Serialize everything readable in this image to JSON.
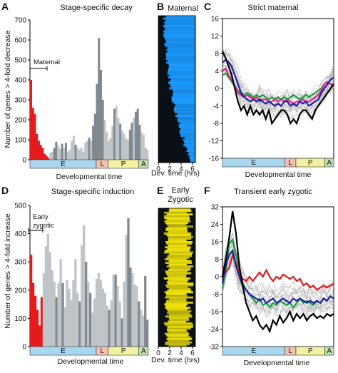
{
  "panels": {
    "A": {
      "letter": "A",
      "title": "Stage-specific decay",
      "annotation": "Maternal",
      "xlabel": "Developmental time",
      "ylabel": "Number of genes > 4-fold decrease"
    },
    "B": {
      "letter": "B",
      "title": "Maternal",
      "xlabel": "Dev. time (hrs)"
    },
    "C": {
      "letter": "C",
      "title": "Strict maternal",
      "xlabel": "Developmental time"
    },
    "D": {
      "letter": "D",
      "title": "Stage-specific induction",
      "annotation_line1": "Early",
      "annotation_line2": "zygotic",
      "xlabel": "Developmental time",
      "ylabel": "Number of genes > 4-fold increase"
    },
    "E": {
      "letter": "E",
      "title_line1": "Early",
      "title_line2": "Zygotic",
      "xlabel": "Dev. time (hrs)"
    },
    "F": {
      "letter": "F",
      "title": "Transient early zygotic",
      "xlabel": "Developmental time"
    }
  },
  "stages": [
    {
      "label": "E",
      "color": "#a9d8ee",
      "span": [
        0,
        0.56
      ]
    },
    {
      "label": "L",
      "color": "#f3c1b4",
      "span": [
        0.56,
        0.66
      ]
    },
    {
      "label": "P",
      "color": "#f2f2a2",
      "span": [
        0.66,
        0.92
      ]
    },
    {
      "label": "A",
      "color": "#bfe0b0",
      "span": [
        0.92,
        1.0
      ]
    }
  ],
  "colors": {
    "red": "#e41a1c",
    "dark_gray": "#808890",
    "light_gray": "#bfc4c9",
    "blue_heat": "#1a9aff",
    "yellow_heat": "#f2e40a",
    "heat_black": "#0b1016"
  },
  "chart_data": [
    {
      "id": "A",
      "type": "bar",
      "ylim": [
        0,
        700
      ],
      "yticks": [
        0,
        100,
        200,
        300,
        400,
        500,
        600,
        700
      ],
      "values": [
        400,
        260,
        230,
        130,
        95,
        75,
        60,
        30,
        20,
        10,
        35,
        40,
        60,
        90,
        70,
        55,
        80,
        60,
        85,
        40,
        50,
        95,
        120,
        75,
        60,
        50,
        60,
        40,
        85,
        95,
        110,
        95,
        170,
        230,
        380,
        610,
        450,
        300,
        200,
        140,
        95,
        110,
        170,
        255,
        270,
        210,
        180,
        145,
        130,
        105,
        100,
        150,
        185,
        210,
        240,
        255,
        175,
        140,
        125,
        60,
        50
      ],
      "colors_idx": [
        0,
        0,
        0,
        0,
        0,
        0,
        0,
        0,
        0,
        0,
        2,
        2,
        1,
        1,
        2,
        2,
        1,
        2,
        1,
        2,
        2,
        2,
        2,
        1,
        2,
        2,
        2,
        2,
        2,
        2,
        1,
        2,
        1,
        1,
        1,
        1,
        1,
        1,
        2,
        2,
        2,
        2,
        2,
        1,
        2,
        2,
        1,
        2,
        2,
        2,
        2,
        1,
        1,
        2,
        1,
        1,
        1,
        2,
        2,
        2,
        2
      ]
    },
    {
      "id": "B",
      "type": "heatmap",
      "xticks": [
        0,
        2,
        4,
        6
      ],
      "xlim": [
        0,
        6.5
      ]
    },
    {
      "id": "C",
      "type": "line",
      "ylim": [
        -16,
        16
      ],
      "yticks": [
        16,
        12,
        8,
        4,
        0,
        -4,
        -8,
        -12,
        -16
      ],
      "series": [
        {
          "color": "#000000",
          "values": [
            8.5,
            7,
            5,
            3,
            0,
            -3,
            -5,
            -4,
            -6,
            -4,
            -6,
            -5,
            -6,
            -5,
            -7,
            -5,
            -8,
            -7,
            -6,
            -5,
            -5,
            -6,
            -8,
            -7,
            -8,
            -6,
            -5,
            -5,
            -6,
            -7,
            -5,
            -4,
            -3,
            -2,
            -1,
            0,
            1
          ]
        },
        {
          "color": "#1f1fa6",
          "values": [
            6,
            6.5,
            6,
            5,
            3,
            1,
            -1,
            -2,
            -2.5,
            -3,
            -2.5,
            -3,
            -2.5,
            -3,
            -3.5,
            -3,
            -3.5,
            -4,
            -3.5,
            -4,
            -3,
            -3,
            -4,
            -3.5,
            -4,
            -3,
            -3.5,
            -3,
            -4,
            -3.5,
            -3,
            -2.5,
            -1,
            0,
            1,
            2,
            2.5
          ]
        },
        {
          "color": "#e0208a",
          "values": [
            4,
            4.5,
            3,
            2,
            0.5,
            -1,
            -1.5,
            -2,
            -1.5,
            -2,
            -2.5,
            -2,
            -3,
            -2.5,
            -2.5,
            -3,
            -3,
            -2.5,
            -3,
            -2.5,
            -3,
            -2.5,
            -3,
            -3.5,
            -3,
            -3,
            -2.5,
            -3,
            -3,
            -2.5,
            -2,
            -1.5,
            -0.5,
            1,
            1.5,
            1,
            1
          ]
        },
        {
          "color": "#1aa03a",
          "values": [
            3,
            3.5,
            2.5,
            1.5,
            0.5,
            -0.5,
            -1,
            -1.5,
            -1,
            -1.5,
            -2,
            -1.5,
            -2,
            -1.5,
            -2,
            -2.5,
            -2,
            -2.5,
            -2,
            -2.5,
            -2,
            -2.5,
            -2,
            -1.5,
            -2,
            -2.5,
            -2,
            -1.5,
            -2,
            -1.5,
            -1,
            -0.5,
            0,
            1,
            1.5,
            1,
            0.5
          ]
        }
      ]
    },
    {
      "id": "D",
      "type": "bar",
      "ylim": [
        0,
        500
      ],
      "yticks": [
        0,
        100,
        200,
        300,
        400,
        500
      ],
      "values": [
        325,
        225,
        180,
        130,
        75,
        175,
        260,
        355,
        400,
        335,
        270,
        230,
        175,
        225,
        310,
        225,
        140,
        235,
        205,
        165,
        235,
        310,
        190,
        160,
        360,
        430,
        300,
        230,
        190,
        120,
        170,
        240,
        260,
        235,
        205,
        190,
        145,
        130,
        165,
        255,
        255,
        215,
        160,
        100,
        230,
        395,
        455,
        280,
        260,
        220,
        215,
        160,
        130,
        110,
        250,
        95
      ],
      "colors_idx": [
        0,
        0,
        0,
        0,
        0,
        0,
        2,
        2,
        2,
        2,
        2,
        2,
        1,
        2,
        2,
        1,
        2,
        2,
        2,
        2,
        2,
        2,
        2,
        1,
        2,
        2,
        1,
        2,
        1,
        2,
        2,
        2,
        2,
        2,
        2,
        2,
        2,
        1,
        2,
        2,
        1,
        2,
        2,
        1,
        2,
        2,
        1,
        1,
        2,
        2,
        2,
        1,
        2,
        2,
        1,
        1
      ]
    },
    {
      "id": "E",
      "type": "heatmap",
      "xticks": [
        0,
        2,
        4,
        6
      ],
      "xlim": [
        0,
        6.5
      ]
    },
    {
      "id": "F",
      "type": "line",
      "ylim": [
        -32,
        32
      ],
      "yticks": [
        32,
        24,
        16,
        8,
        0,
        -8,
        -16,
        -24,
        -32
      ],
      "series": [
        {
          "color": "#000000",
          "values": [
            0,
            8,
            18,
            30,
            20,
            5,
            -4,
            -12,
            -16,
            -20,
            -18,
            -22,
            -24,
            -22,
            -25,
            -20,
            -22,
            -18,
            -21,
            -19,
            -16,
            -20,
            -17,
            -19,
            -17,
            -20,
            -18,
            -17,
            -19,
            -18,
            -19,
            -17,
            -18,
            -17
          ]
        },
        {
          "color": "#1f1fa6",
          "values": [
            -3,
            5,
            10,
            12,
            5,
            0,
            -4,
            -6,
            -8,
            -9,
            -10,
            -11,
            -10,
            -12,
            -11,
            -10,
            -12,
            -11,
            -10,
            -11,
            -12,
            -10,
            -11,
            -10,
            -11,
            -12,
            -11,
            -12,
            -11,
            -12,
            -10,
            -11,
            -9,
            -10
          ]
        },
        {
          "color": "#e41a1c",
          "values": [
            5,
            2,
            4,
            10,
            6,
            2,
            -1,
            -2,
            0,
            -2,
            0,
            2,
            0,
            3,
            0,
            -2,
            0,
            -1,
            1,
            0,
            -1,
            0,
            -2,
            -1,
            -4,
            -3,
            -5,
            -4,
            -6,
            -5,
            -4,
            -5,
            -4,
            -3
          ]
        },
        {
          "color": "#1aa03a",
          "values": [
            -5,
            3,
            15,
            17,
            10,
            3,
            -3,
            -6,
            -8,
            -10,
            -12,
            -10,
            -13,
            -12,
            -14,
            -12,
            -13,
            -11,
            -12,
            -13,
            -12,
            -14,
            -12,
            -10,
            -12,
            -11,
            -12,
            -13,
            -11,
            -12,
            -10,
            -11,
            -9,
            -10
          ]
        }
      ]
    }
  ]
}
